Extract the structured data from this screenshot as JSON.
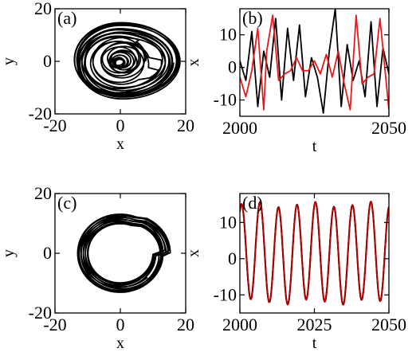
{
  "chart_data": [
    {
      "panel": "(a)",
      "type": "line",
      "xlabel": "x",
      "ylabel": "y",
      "xlim": [
        -20,
        20
      ],
      "ylim": [
        -20,
        20
      ],
      "xticks": [
        "-20",
        "0",
        "20"
      ],
      "yticks": [
        "-20",
        "0",
        "20"
      ],
      "series": [
        {
          "color": "#000000",
          "shape": "chaotic spiral attractor",
          "center": [
            0,
            0
          ],
          "x_range": [
            -13,
            17
          ],
          "y_range": [
            -13,
            13
          ]
        }
      ]
    },
    {
      "panel": "(b)",
      "type": "line",
      "xlabel": "t",
      "ylabel": "x",
      "xlim": [
        2000,
        2050
      ],
      "ylim": [
        -15,
        18
      ],
      "xticks": [
        "2000",
        "2050"
      ],
      "yticks": [
        "-10",
        "0",
        "10"
      ],
      "series": [
        {
          "color": "#000000",
          "points": [
            [
              2000,
              2
            ],
            [
              2002,
              -4
            ],
            [
              2004,
              11
            ],
            [
              2006,
              -12
            ],
            [
              2008,
              5
            ],
            [
              2010,
              -3
            ],
            [
              2012,
              15
            ],
            [
              2014,
              -10
            ],
            [
              2016,
              12
            ],
            [
              2018,
              -4
            ],
            [
              2020,
              13
            ],
            [
              2022,
              -9
            ],
            [
              2024,
              3
            ],
            [
              2026,
              -3
            ],
            [
              2028,
              -14
            ],
            [
              2030,
              5
            ],
            [
              2032,
              18
            ],
            [
              2034,
              -12
            ],
            [
              2036,
              7
            ],
            [
              2038,
              -4
            ],
            [
              2040,
              2
            ],
            [
              2042,
              -9
            ],
            [
              2044,
              14
            ],
            [
              2046,
              -12
            ],
            [
              2048,
              6
            ],
            [
              2050,
              -2
            ]
          ]
        },
        {
          "color": "#e8191c",
          "points": [
            [
              2000,
              -3
            ],
            [
              2002,
              -9
            ],
            [
              2004,
              -1
            ],
            [
              2006,
              12
            ],
            [
              2008,
              -13
            ],
            [
              2009,
              5
            ],
            [
              2011,
              16
            ],
            [
              2013,
              -4
            ],
            [
              2015,
              -2
            ],
            [
              2017,
              -1
            ],
            [
              2019,
              3
            ],
            [
              2021,
              -1
            ],
            [
              2023,
              -1
            ],
            [
              2025,
              2
            ],
            [
              2027,
              -2
            ],
            [
              2029,
              4
            ],
            [
              2031,
              -3
            ],
            [
              2033,
              5
            ],
            [
              2035,
              -5
            ],
            [
              2037,
              -13
            ],
            [
              2039,
              16
            ],
            [
              2041,
              -5
            ],
            [
              2043,
              -3
            ],
            [
              2045,
              -2
            ],
            [
              2047,
              15
            ],
            [
              2050,
              -13
            ]
          ]
        }
      ]
    },
    {
      "panel": "(c)",
      "type": "line",
      "xlabel": "x",
      "ylabel": "y",
      "xlim": [
        -20,
        20
      ],
      "ylim": [
        -20,
        20
      ],
      "xticks": [
        "-20",
        "0",
        "20"
      ],
      "yticks": [
        "-20",
        "0",
        "20"
      ],
      "series": [
        {
          "color": "#000000",
          "shape": "thick limit-cycle ring",
          "center": [
            0,
            0
          ],
          "x_range": [
            -12,
            15
          ],
          "y_range": [
            -12,
            12
          ]
        }
      ]
    },
    {
      "panel": "(d)",
      "type": "line",
      "xlabel": "t",
      "ylabel": "x",
      "xlim": [
        2000,
        2050
      ],
      "ylim": [
        -15,
        18
      ],
      "xticks": [
        "2000",
        "2025",
        "2050"
      ],
      "yticks": [
        "-10",
        "0",
        "10"
      ],
      "series": [
        {
          "color": "#000000",
          "period": 6.2,
          "min": -12,
          "max": 15
        },
        {
          "color": "#b00000",
          "period": 6.2,
          "min": -12,
          "max": 15
        }
      ]
    }
  ]
}
